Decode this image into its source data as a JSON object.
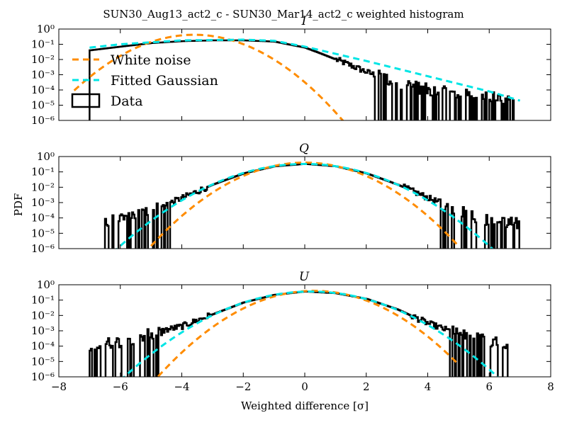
{
  "figure": {
    "suptitle": "SUN30_Aug13_act2_c - SUN30_Mar14_act2_c weighted histogram",
    "xlabel": "Weighted difference [σ]",
    "ylabel": "PDF"
  },
  "legend": {
    "placement": "upper-left of top panel",
    "entries": [
      {
        "label": "White noise",
        "color": "#ff8c00",
        "style": "dashed"
      },
      {
        "label": "Fitted Gaussian",
        "color": "#00e5e5",
        "style": "dashed"
      },
      {
        "label": "Data",
        "color": "#000000",
        "style": "step"
      }
    ]
  },
  "chart_data": [
    {
      "type": "line",
      "title": "I",
      "xlim": [
        -8,
        8
      ],
      "ylim_log10": [
        -6,
        0
      ],
      "y_scale": "log",
      "xticks": [
        -8,
        -6,
        -4,
        -2,
        0,
        2,
        4,
        6,
        8
      ],
      "yticks_log10": [
        0,
        -1,
        -2,
        -3,
        -4,
        -5,
        -6
      ],
      "series": [
        {
          "name": "White noise",
          "color": "#ff8c00",
          "style": "dashed",
          "gaussian": {
            "amplitude": 0.42,
            "mean": -3.6,
            "sigma": 0.95
          },
          "x": [
            -7.5,
            -6,
            -5,
            -4,
            -3.6,
            -3,
            -2,
            -1,
            0,
            1,
            1.5
          ],
          "y": [
            0.01,
            0.05,
            0.14,
            0.38,
            0.42,
            0.34,
            0.09,
            0.01,
            0.0003,
            5e-06,
            1e-06
          ]
        },
        {
          "name": "Fitted Gaussian",
          "color": "#00e5e5",
          "style": "dashed",
          "x": [
            -7,
            -6,
            -4,
            -2,
            -1,
            0,
            2,
            4,
            6,
            7
          ],
          "y": [
            0.06,
            0.1,
            0.18,
            0.2,
            0.17,
            0.07,
            0.008,
            0.0008,
            8e-05,
            2e-05
          ]
        },
        {
          "name": "Data",
          "color": "#000000",
          "style": "step",
          "x": [
            -7,
            -6,
            -5,
            -4,
            -3,
            -2,
            -1,
            0,
            0.5,
            1,
            1.5,
            2,
            3,
            4,
            5,
            6,
            6.8
          ],
          "y": [
            0.04,
            0.07,
            0.12,
            0.16,
            0.18,
            0.18,
            0.15,
            0.06,
            0.025,
            0.01,
            0.004,
            0.0015,
            0.0003,
            0.0001,
            5e-05,
            3e-05,
            3e-05
          ]
        }
      ]
    },
    {
      "type": "line",
      "title": "Q",
      "xlim": [
        -8,
        8
      ],
      "ylim_log10": [
        -6,
        0
      ],
      "y_scale": "log",
      "xticks": [
        -8,
        -6,
        -4,
        -2,
        0,
        2,
        4,
        6,
        8
      ],
      "yticks_log10": [
        0,
        -1,
        -2,
        -3,
        -4,
        -5,
        -6
      ],
      "series": [
        {
          "name": "White noise",
          "color": "#ff8c00",
          "style": "dashed",
          "gaussian": {
            "amplitude": 0.4,
            "mean": 0.0,
            "sigma": 1.0
          },
          "x": [
            -5,
            -4,
            -3,
            -2,
            -1,
            0,
            1,
            2,
            3,
            4,
            5
          ],
          "y": [
            1.5e-06,
            0.00013,
            0.0044,
            0.054,
            0.24,
            0.4,
            0.24,
            0.054,
            0.0044,
            0.00013,
            1.5e-06
          ]
        },
        {
          "name": "Fitted Gaussian",
          "color": "#00e5e5",
          "style": "dashed",
          "gaussian": {
            "amplitude": 0.33,
            "mean": 0.0,
            "sigma": 1.21
          },
          "x": [
            -6.5,
            -5,
            -4,
            -3,
            -2,
            -1,
            0,
            1,
            2,
            3,
            4,
            5,
            6.5
          ],
          "y": [
            1e-06,
            6e-05,
            0.0014,
            0.015,
            0.08,
            0.23,
            0.33,
            0.23,
            0.08,
            0.015,
            0.0014,
            6e-05,
            1e-06
          ]
        },
        {
          "name": "Data",
          "color": "#000000",
          "style": "step",
          "x": [
            -6.5,
            -6,
            -5,
            -4,
            -3,
            -2,
            -1,
            0,
            1,
            2,
            3,
            4,
            5,
            6,
            7
          ],
          "y": [
            4e-05,
            0.0001,
            0.0003,
            0.002,
            0.015,
            0.08,
            0.23,
            0.33,
            0.23,
            0.08,
            0.015,
            0.002,
            0.0003,
            6e-05,
            4e-05
          ]
        }
      ]
    },
    {
      "type": "line",
      "title": "U",
      "xlim": [
        -8,
        8
      ],
      "ylim_log10": [
        -6,
        0
      ],
      "y_scale": "log",
      "xticks": [
        -8,
        -6,
        -4,
        -2,
        0,
        2,
        4,
        6,
        8
      ],
      "yticks_log10": [
        0,
        -1,
        -2,
        -3,
        -4,
        -5,
        -6
      ],
      "series": [
        {
          "name": "White noise",
          "color": "#ff8c00",
          "style": "dashed",
          "gaussian": {
            "amplitude": 0.4,
            "mean": 0.3,
            "sigma": 1.0
          },
          "x": [
            -5,
            -4,
            -3,
            -2,
            -1,
            0,
            1,
            2,
            3,
            4,
            5
          ],
          "y": [
            3e-07,
            4e-05,
            0.0018,
            0.029,
            0.17,
            0.38,
            0.31,
            0.09,
            0.01,
            0.0004,
            6e-06
          ]
        },
        {
          "name": "Fitted Gaussian",
          "color": "#00e5e5",
          "style": "dashed",
          "gaussian": {
            "amplitude": 0.36,
            "mean": 0.2,
            "sigma": 1.2
          },
          "x": [
            -6.5,
            -5,
            -4,
            -3,
            -2,
            -1,
            0,
            1,
            2,
            3,
            4,
            5,
            6.5
          ],
          "y": [
            8e-07,
            3e-05,
            0.0008,
            0.01,
            0.07,
            0.22,
            0.36,
            0.28,
            0.12,
            0.025,
            0.0027,
            0.00013,
            1.5e-06
          ]
        },
        {
          "name": "Data",
          "color": "#000000",
          "style": "step",
          "x": [
            -7,
            -6,
            -5,
            -4,
            -3,
            -2,
            -1,
            0,
            1,
            2,
            3,
            4,
            5,
            6,
            6.6
          ],
          "y": [
            0.0001,
            0.0002,
            0.0007,
            0.002,
            0.012,
            0.07,
            0.22,
            0.36,
            0.28,
            0.12,
            0.025,
            0.003,
            0.0006,
            0.0002,
            0.0001
          ]
        }
      ]
    }
  ]
}
